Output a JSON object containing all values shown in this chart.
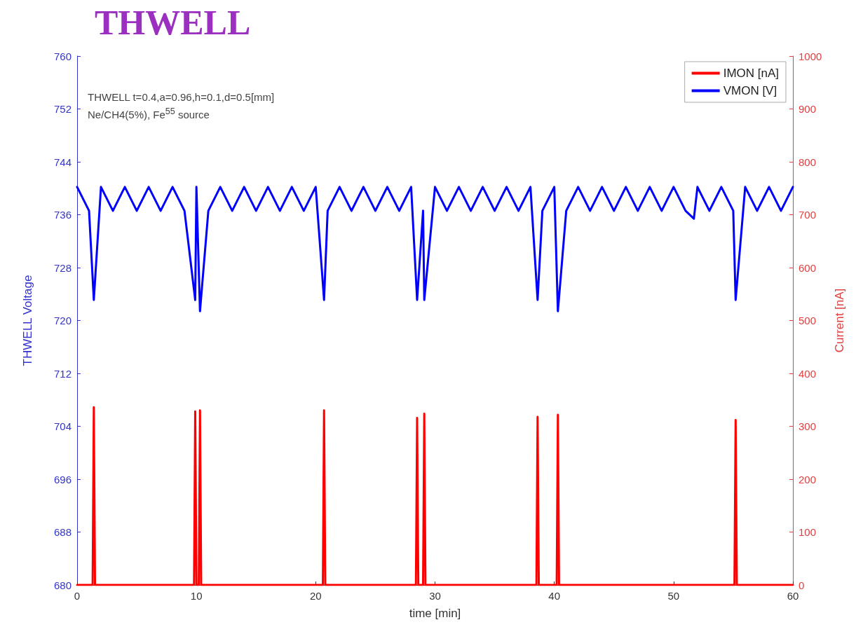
{
  "chart_data": {
    "type": "line",
    "title": "THWELL",
    "xlabel": "time [min]",
    "ylabel": "THWELL Voltage",
    "y2label": "Current [nA]",
    "annotations": [
      "THWELL t=0.4,a=0.96,h=0.1,d=0.5[mm]",
      "Ne/CH4(5%), Fe$^{55}$ source"
    ],
    "xlim": [
      0,
      60
    ],
    "xticks": [
      0,
      10,
      20,
      30,
      40,
      50,
      60
    ],
    "ylim": [
      680,
      760
    ],
    "yticks": [
      680,
      688,
      696,
      704,
      712,
      720,
      728,
      736,
      744,
      752,
      760
    ],
    "y2lim": [
      0,
      1000
    ],
    "y2ticks": [
      0,
      100,
      200,
      300,
      400,
      500,
      600,
      700,
      800,
      900,
      1000
    ],
    "legend": "top right",
    "marker": "none",
    "line_style": "solid",
    "grid": false,
    "series": [
      {
        "name": "IMON [nA]",
        "color": "#ff0000",
        "axis": "y2",
        "x": [
          0,
          1.3,
          1.4,
          1.5,
          9.8,
          9.9,
          10.0,
          10.2,
          10.3,
          10.4,
          20.6,
          20.7,
          20.8,
          28.4,
          28.5,
          28.6,
          29.0,
          29.1,
          29.2,
          38.5,
          38.6,
          38.7,
          40.2,
          40.3,
          40.4,
          55.1,
          55.2,
          55.3,
          60
        ],
        "values": [
          0,
          0,
          336,
          0,
          0,
          328,
          0,
          0,
          330,
          0,
          0,
          330,
          0,
          0,
          316,
          0,
          0,
          324,
          0,
          0,
          318,
          0,
          0,
          322,
          0,
          0,
          312,
          0,
          0
        ]
      },
      {
        "name": "VMON [V]",
        "color": "#0000ff",
        "x": [
          0,
          1,
          1.4,
          2,
          3,
          4,
          5,
          6,
          7,
          8,
          9,
          9.9,
          10,
          10.3,
          11,
          12,
          13,
          14,
          15,
          16,
          17,
          18,
          19,
          20,
          20.7,
          21,
          22,
          23,
          24,
          25,
          26,
          27,
          28,
          28.5,
          29,
          29.1,
          30,
          31,
          32,
          33,
          34,
          35,
          36,
          37,
          38,
          38.6,
          39,
          40,
          40.3,
          41,
          42,
          43,
          44,
          45,
          46,
          47,
          48,
          49,
          50,
          51,
          51.7,
          52,
          53,
          54,
          55,
          55.2,
          56,
          57,
          58,
          59,
          60
        ],
        "values": [
          740.2,
          736.6,
          723.1,
          740.2,
          736.6,
          740.2,
          736.6,
          740.2,
          736.6,
          740.2,
          736.6,
          723.1,
          740.2,
          721.4,
          736.6,
          740.2,
          736.6,
          740.2,
          736.6,
          740.2,
          736.6,
          740.2,
          736.6,
          740.2,
          723.1,
          736.6,
          740.2,
          736.6,
          740.2,
          736.6,
          740.2,
          736.6,
          740.2,
          723.1,
          736.6,
          723.1,
          740.2,
          736.6,
          740.2,
          736.6,
          740.2,
          736.6,
          740.2,
          736.6,
          740.2,
          723.1,
          736.6,
          740.2,
          721.4,
          736.6,
          740.2,
          736.6,
          740.2,
          736.6,
          740.2,
          736.6,
          740.2,
          736.6,
          740.2,
          736.6,
          735.4,
          740.2,
          736.6,
          740.2,
          736.6,
          723.1,
          740.2,
          736.6,
          740.2,
          736.6,
          740.2
        ]
      }
    ]
  }
}
